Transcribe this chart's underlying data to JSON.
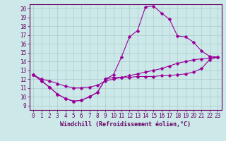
{
  "xlabel": "Windchill (Refroidissement éolien,°C)",
  "bg_color": "#cce8e8",
  "grid_color": "#aacccc",
  "line_color": "#990099",
  "xlim": [
    -0.5,
    23.5
  ],
  "ylim": [
    8.5,
    20.5
  ],
  "xticks": [
    0,
    1,
    2,
    3,
    4,
    5,
    6,
    7,
    8,
    9,
    10,
    11,
    12,
    13,
    14,
    15,
    16,
    17,
    18,
    19,
    20,
    21,
    22,
    23
  ],
  "yticks": [
    9,
    10,
    11,
    12,
    13,
    14,
    15,
    16,
    17,
    18,
    19,
    20
  ],
  "curve_upper_x": [
    0,
    1,
    2,
    3,
    4,
    5,
    6,
    7,
    8,
    9,
    10,
    11,
    12,
    13,
    14,
    15,
    16,
    17,
    18,
    19,
    20,
    21,
    22,
    23
  ],
  "curve_upper_y": [
    12.5,
    11.8,
    11.1,
    10.3,
    9.8,
    9.5,
    9.6,
    10.0,
    10.5,
    12.0,
    12.5,
    14.5,
    16.8,
    17.5,
    20.2,
    20.3,
    19.5,
    18.8,
    16.9,
    16.8,
    16.2,
    15.2,
    14.6,
    14.5
  ],
  "curve_lower_x": [
    0,
    1,
    2,
    3,
    4,
    5,
    6,
    7,
    8,
    9,
    10,
    11,
    12,
    13,
    14,
    15,
    16,
    17,
    18,
    19,
    20,
    21,
    22,
    23
  ],
  "curve_lower_y": [
    12.5,
    11.8,
    11.1,
    10.3,
    9.8,
    9.5,
    9.6,
    10.0,
    10.5,
    12.0,
    12.2,
    12.2,
    12.2,
    12.3,
    12.3,
    12.3,
    12.4,
    12.4,
    12.5,
    12.6,
    12.8,
    13.2,
    14.2,
    14.5
  ],
  "curve_mid_x": [
    0,
    1,
    2,
    3,
    4,
    5,
    6,
    7,
    8,
    9,
    10,
    11,
    12,
    13,
    14,
    15,
    16,
    17,
    18,
    19,
    20,
    21,
    22,
    23
  ],
  "curve_mid_y": [
    12.5,
    12.0,
    11.8,
    11.5,
    11.2,
    11.0,
    11.0,
    11.1,
    11.3,
    11.8,
    12.0,
    12.2,
    12.4,
    12.6,
    12.8,
    13.0,
    13.2,
    13.5,
    13.8,
    14.0,
    14.2,
    14.3,
    14.4,
    14.5
  ],
  "marker": "D",
  "marker_size": 2.5,
  "tick_fontsize": 5.5,
  "xlabel_fontsize": 6,
  "tick_color": "#660066",
  "spine_color": "#660066"
}
